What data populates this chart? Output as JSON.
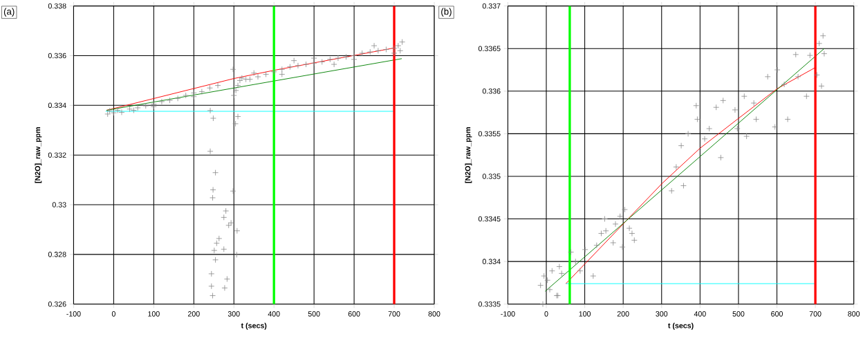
{
  "chart_data": [
    {
      "type": "scatter",
      "xlabel": "t (secs)",
      "ylabel": "[N2O]_raw_ppm",
      "annotations": [
        "(a)"
      ],
      "grid": true,
      "xlim": [
        -100,
        800
      ],
      "xticks": [
        -100,
        0,
        100,
        200,
        300,
        400,
        500,
        600,
        700,
        800
      ],
      "ylim": [
        0.326,
        0.338
      ],
      "yticks": [
        0.326,
        0.328,
        0.33,
        0.332,
        0.334,
        0.336,
        0.338
      ],
      "series": [
        {
          "color": "#888888",
          "marker": "cross",
          "x": [
            -15,
            -10,
            0,
            10,
            20,
            40,
            50,
            60,
            80,
            100,
            100,
            120,
            140,
            160,
            180,
            200,
            200,
            220,
            240,
            260,
            241,
            248.5,
            241,
            254,
            248,
            247,
            298,
            280,
            275,
            287,
            293,
            263,
            257,
            251,
            308,
            275,
            254,
            307,
            244,
            283,
            244,
            277,
            247,
            298,
            310,
            304,
            300,
            305,
            310,
            315,
            320,
            330,
            340,
            350,
            360,
            380,
            400,
            420,
            420,
            440,
            450,
            460,
            480,
            500,
            500,
            520,
            540,
            550,
            560,
            580,
            600,
            600,
            620,
            640,
            650,
            660,
            680,
            700,
            700,
            710,
            715,
            720
          ],
          "values": [
            0.33365,
            0.33378,
            0.3337,
            0.3338,
            0.33372,
            0.33385,
            0.3338,
            0.3339,
            0.33398,
            0.33405,
            0.33395,
            0.33415,
            0.3342,
            0.33428,
            0.3344,
            0.3345,
            0.33435,
            0.33455,
            0.3347,
            0.3348,
            0.33379,
            0.33348,
            0.33215,
            0.33129,
            0.3306,
            0.33028,
            0.33055,
            0.32975,
            0.32949,
            0.32917,
            0.32927,
            0.32864,
            0.32845,
            0.32816,
            0.32895,
            0.32821,
            0.32778,
            0.32799,
            0.32722,
            0.32701,
            0.32672,
            0.32665,
            0.32634,
            0.33545,
            0.33355,
            0.33326,
            0.3344,
            0.3346,
            0.3348,
            0.335,
            0.3351,
            0.33505,
            0.33505,
            0.3353,
            0.33515,
            0.33525,
            0.33535,
            0.33545,
            0.33525,
            0.33555,
            0.3358,
            0.3356,
            0.33565,
            0.3357,
            0.3359,
            0.33575,
            0.33585,
            0.33565,
            0.3359,
            0.33595,
            0.336,
            0.33585,
            0.3361,
            0.33615,
            0.3364,
            0.3362,
            0.33625,
            0.3363,
            0.3361,
            0.3364,
            0.3362,
            0.33655
          ]
        },
        {
          "type": "line",
          "color": "#00ffff",
          "x": [
            -20,
            700
          ],
          "values": [
            0.33376,
            0.33376
          ]
        },
        {
          "type": "line",
          "color": "#ff0000",
          "x": [
            -18,
            300,
            400,
            700
          ],
          "values": [
            0.3338,
            0.33508,
            0.33541,
            0.33631
          ]
        },
        {
          "type": "line",
          "color": "#008000",
          "x": [
            -18,
            719
          ],
          "values": [
            0.3338,
            0.33588
          ]
        }
      ],
      "ref_lines": [
        {
          "axis": "x",
          "value": 400,
          "color": "#00ff00"
        },
        {
          "axis": "x",
          "value": 700,
          "color": "#ff0000"
        }
      ]
    },
    {
      "type": "scatter",
      "xlabel": "t (secs)",
      "ylabel": "[N2O]_raw_ppm",
      "annotations": [
        "(b)"
      ],
      "grid": true,
      "xlim": [
        -100,
        800
      ],
      "xticks": [
        -100,
        0,
        100,
        200,
        300,
        400,
        500,
        600,
        700,
        800
      ],
      "ylim": [
        0.3335,
        0.337
      ],
      "yticks": [
        0.3335,
        0.334,
        0.3345,
        0.335,
        0.3355,
        0.336,
        0.3365,
        0.337
      ],
      "series": [
        {
          "color": "#888888",
          "marker": "cross",
          "x": [
            -15,
            -9,
            -6,
            3,
            9,
            15,
            27,
            30,
            34,
            40,
            64,
            76,
            88,
            101,
            122,
            131,
            143,
            152,
            155,
            174,
            180,
            192,
            198,
            204,
            216,
            223,
            229,
            326,
            338,
            351,
            357,
            369,
            390,
            393,
            412,
            424,
            442,
            454,
            460,
            491,
            497,
            515,
            521,
            540,
            546,
            576,
            595,
            601,
            619,
            628,
            649,
            655,
            677,
            686,
            704,
            710,
            716,
            720,
            723
          ],
          "values": [
            0.33372,
            0.3335,
            0.33383,
            0.33378,
            0.33367,
            0.33389,
            0.3336,
            0.3336,
            0.33394,
            0.33386,
            0.33411,
            0.334,
            0.33389,
            0.33414,
            0.33383,
            0.33419,
            0.33433,
            0.3345,
            0.33436,
            0.33422,
            0.33444,
            0.33453,
            0.33417,
            0.33461,
            0.33439,
            0.33433,
            0.33425,
            0.33483,
            0.33511,
            0.33536,
            0.33489,
            0.3355,
            0.33583,
            0.33567,
            0.33544,
            0.33556,
            0.33581,
            0.33522,
            0.33589,
            0.33578,
            0.33556,
            0.33594,
            0.33547,
            0.33586,
            0.33567,
            0.33617,
            0.33558,
            0.33625,
            0.33608,
            0.33567,
            0.33643,
            0.33617,
            0.33594,
            0.33642,
            0.33619,
            0.33656,
            0.33606,
            0.33665,
            0.33644
          ]
        },
        {
          "type": "line",
          "color": "#00ffff",
          "x": [
            51,
            700
          ],
          "values": [
            0.33374,
            0.33374
          ]
        },
        {
          "type": "line",
          "color": "#ff0000",
          "x": [
            51,
            302,
            400,
            497,
            601,
            701
          ],
          "values": [
            0.33374,
            0.33492,
            0.33533,
            0.33567,
            0.33603,
            0.33628
          ]
        },
        {
          "type": "line",
          "color": "#008000",
          "x": [
            -3,
            723
          ],
          "values": [
            0.33365,
            0.3365
          ]
        }
      ],
      "ref_lines": [
        {
          "axis": "x",
          "value": 61,
          "color": "#00ff00"
        },
        {
          "axis": "x",
          "value": 700,
          "color": "#ff0000"
        }
      ]
    }
  ]
}
